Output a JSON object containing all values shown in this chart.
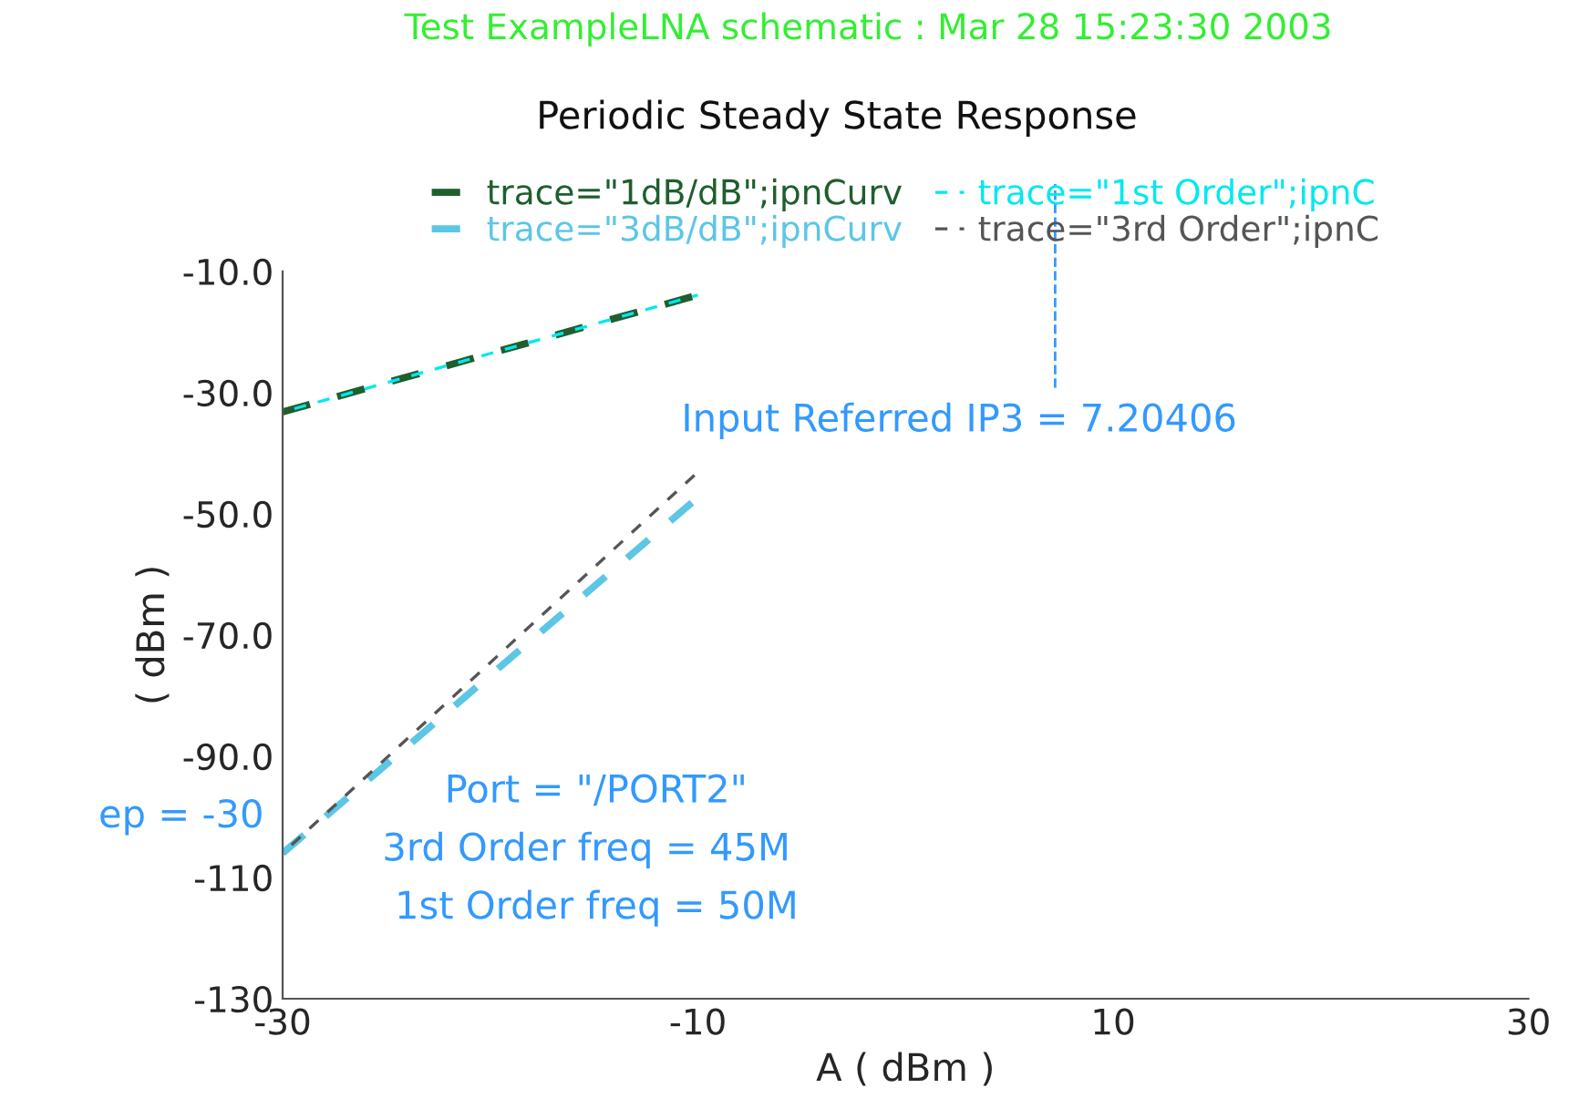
{
  "chart_data": {
    "type": "line",
    "subtitle": "Test ExampleLNA schematic : Mar 28 15:23:30 2003",
    "title": "Periodic Steady State Response",
    "xlabel": "A ( dBm )",
    "ylabel": "( dBm )",
    "x": [
      -30,
      -10
    ],
    "series": [
      {
        "name": "trace=\"1dB/dB\";ipnCurv",
        "color": "#1f5e2e",
        "values": [
          -33.2,
          -13.9
        ]
      },
      {
        "name": "trace=\"1st Order\";ipnC",
        "color": "#00e8f0",
        "values": [
          -33.2,
          -13.9
        ]
      },
      {
        "name": "trace=\"3dB/dB\";ipnCurv",
        "color": "#5cc6e6",
        "values": [
          -106,
          -47.3
        ]
      },
      {
        "name": "trace=\"3rd Order\";ipnC",
        "color": "#555555",
        "values": [
          -106,
          -43.1
        ]
      }
    ],
    "line_style": "dashed",
    "xlim": [
      -30,
      30
    ],
    "ylim": [
      -130,
      -10
    ],
    "xticks": [
      {
        "value": -30,
        "label": "-30"
      },
      {
        "value": -10,
        "label": "-10"
      },
      10,
      30
    ],
    "yticks": [
      {
        "value": -10,
        "label": "-10.0"
      },
      {
        "value": -30,
        "label": "-30.0"
      },
      {
        "value": -50,
        "label": "-50.0"
      },
      {
        "value": -70,
        "label": "-70.0"
      },
      {
        "value": -90,
        "label": "-90.0"
      },
      {
        "value": -110,
        "label": "-110"
      },
      {
        "value": -130,
        "label": "-130"
      }
    ],
    "ref_lines": [
      {
        "axis": "x",
        "value": 7.20406,
        "label": "Input Referred IP3 = 7.20406",
        "color": "#3399ff",
        "line_style": "dashed"
      }
    ],
    "annotations": [
      "ep = -30",
      "Port = \"/PORT2\"",
      "3rd Order freq = 45M",
      "1st Order freq = 50M"
    ],
    "legend": "top",
    "grid": false
  }
}
